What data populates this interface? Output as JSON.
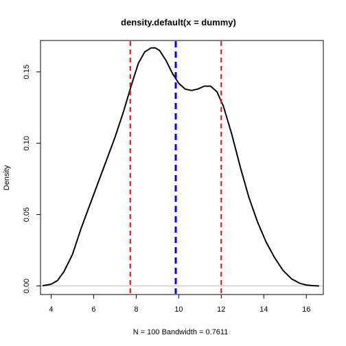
{
  "chart_data": {
    "type": "line",
    "title": "density.default(x = dummy)",
    "xlabel": "N = 100   Bandwidth = 0.7611",
    "ylabel": "Density",
    "xlim": [
      3.5,
      16.8
    ],
    "ylim": [
      -0.006,
      0.172
    ],
    "x_ticks": [
      4,
      6,
      8,
      10,
      12,
      14,
      16
    ],
    "y_ticks": [
      0.0,
      0.05,
      0.1,
      0.15
    ],
    "x_tick_labels": [
      "4",
      "6",
      "8",
      "10",
      "12",
      "14",
      "16"
    ],
    "y_tick_labels": [
      "0.00",
      "0.05",
      "0.10",
      "0.15"
    ],
    "grid": false,
    "legend": "none",
    "baseline": {
      "y": 0,
      "color": "#bebebe"
    },
    "series": [
      {
        "color": "#000000",
        "x": [
          3.6,
          4.0,
          4.3,
          4.6,
          5.0,
          5.4,
          5.8,
          6.2,
          6.6,
          7.0,
          7.4,
          7.8,
          8.1,
          8.4,
          8.7,
          8.9,
          9.1,
          9.4,
          9.7,
          10.0,
          10.3,
          10.6,
          10.9,
          11.2,
          11.5,
          11.8,
          12.1,
          12.5,
          12.9,
          13.3,
          13.7,
          14.1,
          14.5,
          14.9,
          15.3,
          15.7,
          16.0,
          16.3,
          16.6
        ],
        "y": [
          0.0002,
          0.0012,
          0.0038,
          0.01,
          0.022,
          0.04,
          0.056,
          0.072,
          0.088,
          0.104,
          0.122,
          0.142,
          0.156,
          0.164,
          0.1668,
          0.1668,
          0.165,
          0.158,
          0.149,
          0.142,
          0.138,
          0.137,
          0.138,
          0.14,
          0.14,
          0.136,
          0.126,
          0.106,
          0.083,
          0.062,
          0.045,
          0.031,
          0.02,
          0.011,
          0.005,
          0.0018,
          0.0007,
          0.0002,
          0.0
        ]
      }
    ],
    "reference_lines": [
      {
        "x": 7.72,
        "color": "#ff0000",
        "style": "dashed"
      },
      {
        "x": 9.86,
        "color": "#0000ff",
        "style": "dashed"
      },
      {
        "x": 12.0,
        "color": "#ff0000",
        "style": "dashed"
      }
    ]
  }
}
